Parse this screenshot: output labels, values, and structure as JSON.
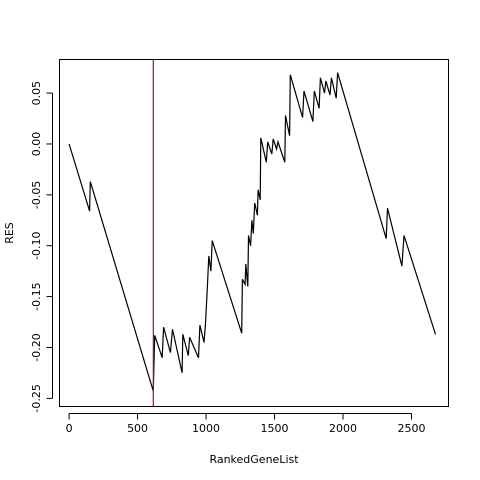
{
  "chart_data": {
    "type": "line",
    "title": "",
    "xlabel": "RankedGeneList",
    "ylabel": "RES",
    "xlim": [
      -70,
      2770
    ],
    "ylim": [
      -0.258,
      0.083
    ],
    "x_ticks": [
      0,
      500,
      1000,
      1500,
      2000,
      2500
    ],
    "x_tick_labels": [
      "0",
      "500",
      "1000",
      "1500",
      "2000",
      "2500"
    ],
    "y_ticks": [
      -0.25,
      -0.2,
      -0.15,
      -0.1,
      -0.05,
      0.0,
      0.05
    ],
    "y_tick_labels": [
      "-0.25",
      "-0.20",
      "-0.15",
      "-0.10",
      "-0.05",
      "0.00",
      "0.05"
    ],
    "grid": false,
    "line_color": "#000000",
    "vline": {
      "x": 615,
      "color": "#cc0000"
    },
    "series": [
      {
        "values": [
          [
            0,
            0.0
          ],
          [
            150,
            -0.066
          ],
          [
            155,
            -0.037
          ],
          [
            615,
            -0.243
          ],
          [
            625,
            -0.188
          ],
          [
            680,
            -0.21
          ],
          [
            690,
            -0.18
          ],
          [
            740,
            -0.205
          ],
          [
            755,
            -0.182
          ],
          [
            825,
            -0.225
          ],
          [
            830,
            -0.187
          ],
          [
            870,
            -0.208
          ],
          [
            880,
            -0.19
          ],
          [
            945,
            -0.21
          ],
          [
            955,
            -0.178
          ],
          [
            985,
            -0.195
          ],
          [
            995,
            -0.178
          ],
          [
            1010,
            -0.14
          ],
          [
            1020,
            -0.11
          ],
          [
            1035,
            -0.125
          ],
          [
            1045,
            -0.095
          ],
          [
            1260,
            -0.186
          ],
          [
            1265,
            -0.133
          ],
          [
            1285,
            -0.138
          ],
          [
            1290,
            -0.118
          ],
          [
            1305,
            -0.14
          ],
          [
            1310,
            -0.09
          ],
          [
            1325,
            -0.1
          ],
          [
            1335,
            -0.075
          ],
          [
            1345,
            -0.088
          ],
          [
            1355,
            -0.058
          ],
          [
            1375,
            -0.07
          ],
          [
            1380,
            -0.045
          ],
          [
            1395,
            -0.055
          ],
          [
            1400,
            0.006
          ],
          [
            1440,
            -0.018
          ],
          [
            1450,
            0.002
          ],
          [
            1480,
            -0.01
          ],
          [
            1490,
            0.005
          ],
          [
            1515,
            -0.005
          ],
          [
            1525,
            0.002
          ],
          [
            1575,
            -0.018
          ],
          [
            1580,
            0.028
          ],
          [
            1610,
            0.008
          ],
          [
            1615,
            0.068
          ],
          [
            1705,
            0.026
          ],
          [
            1715,
            0.052
          ],
          [
            1780,
            0.022
          ],
          [
            1790,
            0.052
          ],
          [
            1825,
            0.035
          ],
          [
            1835,
            0.065
          ],
          [
            1865,
            0.05
          ],
          [
            1875,
            0.062
          ],
          [
            1905,
            0.048
          ],
          [
            1915,
            0.065
          ],
          [
            1950,
            0.045
          ],
          [
            1960,
            0.07
          ],
          [
            2315,
            -0.093
          ],
          [
            2325,
            -0.063
          ],
          [
            2430,
            -0.12
          ],
          [
            2445,
            -0.09
          ],
          [
            2675,
            -0.187
          ]
        ]
      }
    ]
  }
}
